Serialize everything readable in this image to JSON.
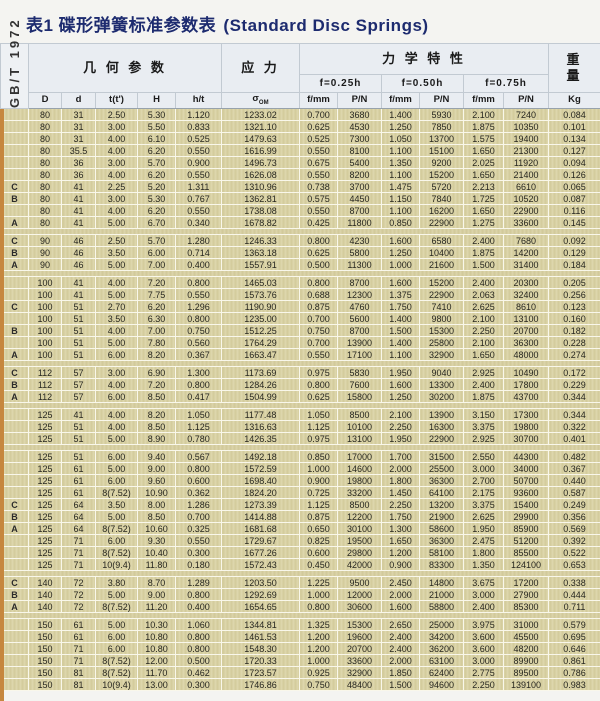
{
  "title": {
    "zh": "表1 碟形弹簧标准参数表",
    "en": "(Standard Disc Springs)"
  },
  "colors": {
    "title_navy": "#1d2b6f",
    "header_bg": "#e9edf2",
    "body_tan": "#d6ce9f",
    "left_strip_orange": "#c6873f"
  },
  "table": {
    "standard_label": "GB/T 1972",
    "group_headers": {
      "geometry": "几 何 参 数",
      "stress": "应 力",
      "mechanical": "力 学 特 性",
      "weight_top": "重",
      "weight_bottom": "量"
    },
    "deflection_headers": [
      "f=0.25h",
      "f=0.50h",
      "f=0.75h"
    ],
    "stress_symbol": "σ",
    "stress_symbol_sub": "OM",
    "geometry_cols": [
      "D",
      "d",
      "t(t')",
      "H",
      "h/t"
    ],
    "mech_cols": [
      "f/mm",
      "P/N",
      "f/mm",
      "P/N",
      "f/mm",
      "P/N"
    ],
    "weight_unit": "Kg",
    "groups": [
      {
        "rows": [
          [
            "",
            "80",
            "31",
            "2.50",
            "5.30",
            "1.120",
            "1233.02",
            "0.700",
            "3680",
            "1.400",
            "5930",
            "2.100",
            "7240",
            "0.084"
          ],
          [
            "",
            "80",
            "31",
            "3.00",
            "5.50",
            "0.833",
            "1321.10",
            "0.625",
            "4530",
            "1.250",
            "7850",
            "1.875",
            "10350",
            "0.101"
          ],
          [
            "",
            "80",
            "31",
            "4.00",
            "6.10",
            "0.525",
            "1479.63",
            "0.525",
            "7300",
            "1.050",
            "13700",
            "1.575",
            "19400",
            "0.134"
          ],
          [
            "",
            "80",
            "35.5",
            "4.00",
            "6.20",
            "0.550",
            "1616.99",
            "0.550",
            "8100",
            "1.100",
            "15100",
            "1.650",
            "21300",
            "0.127"
          ],
          [
            "",
            "80",
            "36",
            "3.00",
            "5.70",
            "0.900",
            "1496.73",
            "0.675",
            "5400",
            "1.350",
            "9200",
            "2.025",
            "11920",
            "0.094"
          ],
          [
            "",
            "80",
            "36",
            "4.00",
            "6.20",
            "0.550",
            "1626.08",
            "0.550",
            "8200",
            "1.100",
            "15200",
            "1.650",
            "21400",
            "0.126"
          ],
          [
            "C",
            "80",
            "41",
            "2.25",
            "5.20",
            "1.311",
            "1310.96",
            "0.738",
            "3700",
            "1.475",
            "5720",
            "2.213",
            "6610",
            "0.065"
          ],
          [
            "B",
            "80",
            "41",
            "3.00",
            "5.30",
            "0.767",
            "1362.81",
            "0.575",
            "4450",
            "1.150",
            "7840",
            "1.725",
            "10520",
            "0.087"
          ],
          [
            "",
            "80",
            "41",
            "4.00",
            "6.20",
            "0.550",
            "1738.08",
            "0.550",
            "8700",
            "1.100",
            "16200",
            "1.650",
            "22900",
            "0.116"
          ],
          [
            "A",
            "80",
            "41",
            "5.00",
            "6.70",
            "0.340",
            "1678.82",
            "0.425",
            "11800",
            "0.850",
            "22900",
            "1.275",
            "33600",
            "0.145"
          ]
        ]
      },
      {
        "rows": [
          [
            "C",
            "90",
            "46",
            "2.50",
            "5.70",
            "1.280",
            "1246.33",
            "0.800",
            "4230",
            "1.600",
            "6580",
            "2.400",
            "7680",
            "0.092"
          ],
          [
            "B",
            "90",
            "46",
            "3.50",
            "6.00",
            "0.714",
            "1363.18",
            "0.625",
            "5800",
            "1.250",
            "10400",
            "1.875",
            "14200",
            "0.129"
          ],
          [
            "A",
            "90",
            "46",
            "5.00",
            "7.00",
            "0.400",
            "1557.91",
            "0.500",
            "11300",
            "1.000",
            "21600",
            "1.500",
            "31400",
            "0.184"
          ]
        ]
      },
      {
        "rows": [
          [
            "",
            "100",
            "41",
            "4.00",
            "7.20",
            "0.800",
            "1465.03",
            "0.800",
            "8700",
            "1.600",
            "15200",
            "2.400",
            "20300",
            "0.205"
          ],
          [
            "",
            "100",
            "41",
            "5.00",
            "7.75",
            "0.550",
            "1573.76",
            "0.688",
            "12300",
            "1.375",
            "22900",
            "2.063",
            "32400",
            "0.256"
          ],
          [
            "C",
            "100",
            "51",
            "2.70",
            "6.20",
            "1.296",
            "1190.90",
            "0.875",
            "4760",
            "1.750",
            "7410",
            "2.625",
            "8610",
            "0.123"
          ],
          [
            "",
            "100",
            "51",
            "3.50",
            "6.30",
            "0.800",
            "1235.00",
            "0.700",
            "5600",
            "1.400",
            "9800",
            "2.100",
            "13100",
            "0.160"
          ],
          [
            "B",
            "100",
            "51",
            "4.00",
            "7.00",
            "0.750",
            "1512.25",
            "0.750",
            "8700",
            "1.500",
            "15300",
            "2.250",
            "20700",
            "0.182"
          ],
          [
            "",
            "100",
            "51",
            "5.00",
            "7.80",
            "0.560",
            "1764.29",
            "0.700",
            "13900",
            "1.400",
            "25800",
            "2.100",
            "36300",
            "0.228"
          ],
          [
            "A",
            "100",
            "51",
            "6.00",
            "8.20",
            "0.367",
            "1663.47",
            "0.550",
            "17100",
            "1.100",
            "32900",
            "1.650",
            "48000",
            "0.274"
          ]
        ]
      },
      {
        "rows": [
          [
            "C",
            "112",
            "57",
            "3.00",
            "6.90",
            "1.300",
            "1173.69",
            "0.975",
            "5830",
            "1.950",
            "9040",
            "2.925",
            "10490",
            "0.172"
          ],
          [
            "B",
            "112",
            "57",
            "4.00",
            "7.20",
            "0.800",
            "1284.26",
            "0.800",
            "7600",
            "1.600",
            "13300",
            "2.400",
            "17800",
            "0.229"
          ],
          [
            "A",
            "112",
            "57",
            "6.00",
            "8.50",
            "0.417",
            "1504.99",
            "0.625",
            "15800",
            "1.250",
            "30200",
            "1.875",
            "43700",
            "0.344"
          ]
        ]
      },
      {
        "rows": [
          [
            "",
            "125",
            "41",
            "4.00",
            "8.20",
            "1.050",
            "1177.48",
            "1.050",
            "8500",
            "2.100",
            "13900",
            "3.150",
            "17300",
            "0.344"
          ],
          [
            "",
            "125",
            "51",
            "4.00",
            "8.50",
            "1.125",
            "1316.63",
            "1.125",
            "10100",
            "2.250",
            "16300",
            "3.375",
            "19800",
            "0.322"
          ],
          [
            "",
            "125",
            "51",
            "5.00",
            "8.90",
            "0.780",
            "1426.35",
            "0.975",
            "13100",
            "1.950",
            "22900",
            "2.925",
            "30700",
            "0.401"
          ]
        ]
      },
      {
        "rows": [
          [
            "",
            "125",
            "51",
            "6.00",
            "9.40",
            "0.567",
            "1492.18",
            "0.850",
            "17000",
            "1.700",
            "31500",
            "2.550",
            "44300",
            "0.482"
          ],
          [
            "",
            "125",
            "61",
            "5.00",
            "9.00",
            "0.800",
            "1572.59",
            "1.000",
            "14600",
            "2.000",
            "25500",
            "3.000",
            "34000",
            "0.367"
          ],
          [
            "",
            "125",
            "61",
            "6.00",
            "9.60",
            "0.600",
            "1698.40",
            "0.900",
            "19800",
            "1.800",
            "36300",
            "2.700",
            "50700",
            "0.440"
          ],
          [
            "",
            "125",
            "61",
            "8(7.52)",
            "10.90",
            "0.362",
            "1824.20",
            "0.725",
            "33200",
            "1.450",
            "64100",
            "2.175",
            "93600",
            "0.587"
          ],
          [
            "C",
            "125",
            "64",
            "3.50",
            "8.00",
            "1.286",
            "1273.39",
            "1.125",
            "8500",
            "2.250",
            "13200",
            "3.375",
            "15400",
            "0.249"
          ],
          [
            "B",
            "125",
            "64",
            "5.00",
            "8.50",
            "0.700",
            "1414.88",
            "0.875",
            "12200",
            "1.750",
            "21900",
            "2.625",
            "29900",
            "0.356"
          ],
          [
            "A",
            "125",
            "64",
            "8(7.52)",
            "10.60",
            "0.325",
            "1681.68",
            "0.650",
            "30100",
            "1.300",
            "58600",
            "1.950",
            "85900",
            "0.569"
          ],
          [
            "",
            "125",
            "71",
            "6.00",
            "9.30",
            "0.550",
            "1729.67",
            "0.825",
            "19500",
            "1.650",
            "36300",
            "2.475",
            "51200",
            "0.392"
          ],
          [
            "",
            "125",
            "71",
            "8(7.52)",
            "10.40",
            "0.300",
            "1677.26",
            "0.600",
            "29800",
            "1.200",
            "58100",
            "1.800",
            "85500",
            "0.522"
          ],
          [
            "",
            "125",
            "71",
            "10(9.4)",
            "11.80",
            "0.180",
            "1572.43",
            "0.450",
            "42000",
            "0.900",
            "83300",
            "1.350",
            "124100",
            "0.653"
          ]
        ]
      },
      {
        "rows": [
          [
            "C",
            "140",
            "72",
            "3.80",
            "8.70",
            "1.289",
            "1203.50",
            "1.225",
            "9500",
            "2.450",
            "14800",
            "3.675",
            "17200",
            "0.338"
          ],
          [
            "B",
            "140",
            "72",
            "5.00",
            "9.00",
            "0.800",
            "1292.69",
            "1.000",
            "12000",
            "2.000",
            "21000",
            "3.000",
            "27900",
            "0.444"
          ],
          [
            "A",
            "140",
            "72",
            "8(7.52)",
            "11.20",
            "0.400",
            "1654.65",
            "0.800",
            "30600",
            "1.600",
            "58800",
            "2.400",
            "85300",
            "0.711"
          ]
        ]
      },
      {
        "rows": [
          [
            "",
            "150",
            "61",
            "5.00",
            "10.30",
            "1.060",
            "1344.81",
            "1.325",
            "15300",
            "2.650",
            "25000",
            "3.975",
            "31000",
            "0.579"
          ],
          [
            "",
            "150",
            "61",
            "6.00",
            "10.80",
            "0.800",
            "1461.53",
            "1.200",
            "19600",
            "2.400",
            "34200",
            "3.600",
            "45500",
            "0.695"
          ],
          [
            "",
            "150",
            "71",
            "6.00",
            "10.80",
            "0.800",
            "1548.30",
            "1.200",
            "20700",
            "2.400",
            "36200",
            "3.600",
            "48200",
            "0.646"
          ],
          [
            "",
            "150",
            "71",
            "8(7.52)",
            "12.00",
            "0.500",
            "1720.33",
            "1.000",
            "33600",
            "2.000",
            "63100",
            "3.000",
            "89900",
            "0.861"
          ],
          [
            "",
            "150",
            "81",
            "8(7.52)",
            "11.70",
            "0.462",
            "1723.57",
            "0.925",
            "32900",
            "1.850",
            "62400",
            "2.775",
            "89500",
            "0.786"
          ],
          [
            "",
            "150",
            "81",
            "10(9.4)",
            "13.00",
            "0.300",
            "1746.86",
            "0.750",
            "48400",
            "1.500",
            "94600",
            "2.250",
            "139100",
            "0.983"
          ]
        ]
      }
    ]
  }
}
